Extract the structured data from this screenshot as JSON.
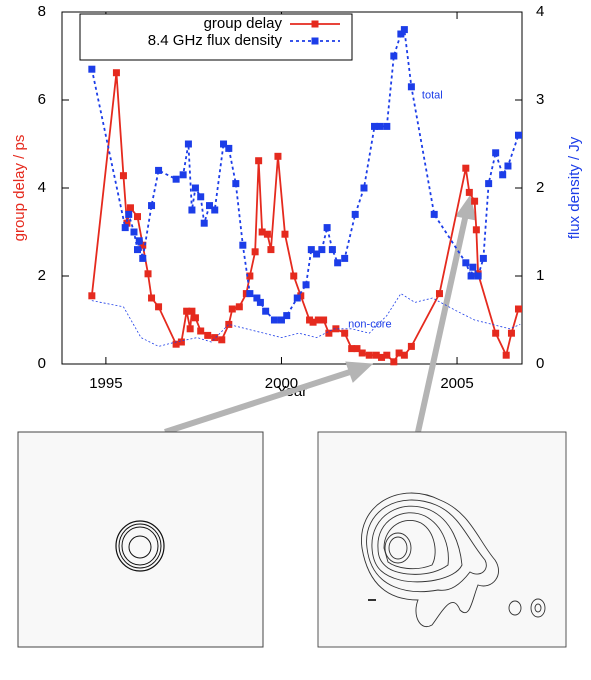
{
  "chart_data": {
    "type": "line",
    "xlabel": "Year",
    "ylabel": "group delay / ps",
    "y2label": "flux density / Jy",
    "xlim": [
      1993.75,
      2006.85
    ],
    "xticks": [
      1995,
      2000,
      2005
    ],
    "ylim": [
      0,
      8
    ],
    "yticks": [
      0,
      2,
      4,
      6,
      8
    ],
    "y2lim": [
      0,
      4
    ],
    "y2ticks": [
      0,
      1,
      2,
      3,
      4
    ],
    "legend": "upper left",
    "annotations": [
      {
        "text": "total",
        "x": 2004.0,
        "y": 3.05,
        "axis": "y2"
      },
      {
        "text": "non-core",
        "x": 2001.9,
        "y": 0.45,
        "axis": "y2"
      }
    ],
    "series": [
      {
        "name": "group delay",
        "color": "#e52a1e",
        "style": "solid",
        "marker": true,
        "x": [
          1994.6,
          1995.3,
          1995.5,
          1995.6,
          1995.7,
          1995.9,
          1996.05,
          1996.2,
          1996.3,
          1996.5,
          1997.0,
          1997.15,
          1997.3,
          1997.4,
          1997.45,
          1997.55,
          1997.7,
          1997.9,
          1998.1,
          1998.3,
          1998.5,
          1998.6,
          1998.8,
          1999.0,
          1999.1,
          1999.25,
          1999.35,
          1999.45,
          1999.6,
          1999.7,
          1999.9,
          2000.1,
          2000.35,
          2000.55,
          2000.8,
          2000.9,
          2001.05,
          2001.2,
          2001.35,
          2001.55,
          2001.8,
          2002.0,
          2002.15,
          2002.3,
          2002.5,
          2002.7,
          2002.85,
          2003.0,
          2003.2,
          2003.35,
          2003.5,
          2003.7,
          2004.5,
          2005.25,
          2005.35,
          2005.5,
          2005.55,
          2005.6,
          2006.1,
          2006.4,
          2006.55,
          2006.75
        ],
        "values": [
          1.55,
          6.62,
          4.28,
          3.2,
          3.55,
          3.35,
          2.7,
          2.05,
          1.5,
          1.3,
          0.45,
          0.5,
          1.2,
          0.8,
          1.2,
          1.05,
          0.75,
          0.65,
          0.6,
          0.55,
          0.9,
          1.25,
          1.3,
          1.6,
          2.0,
          2.55,
          4.62,
          3.0,
          2.95,
          2.6,
          4.72,
          2.95,
          2.0,
          1.55,
          1.0,
          0.95,
          1.0,
          1.0,
          0.7,
          0.8,
          0.7,
          0.35,
          0.35,
          0.25,
          0.2,
          0.2,
          0.15,
          0.2,
          0.05,
          0.25,
          0.2,
          0.4,
          1.6,
          4.45,
          3.9,
          3.7,
          3.05,
          2.05,
          0.7,
          0.2,
          0.7,
          1.25
        ]
      },
      {
        "name": "8.4 GHz flux density",
        "color": "#1c3de8",
        "style": "dotted",
        "marker": true,
        "axis": "y2",
        "x": [
          1994.6,
          1995.55,
          1995.65,
          1995.8,
          1995.9,
          1995.95,
          1996.05,
          1996.3,
          1996.5,
          1997.0,
          1997.2,
          1997.35,
          1997.45,
          1997.55,
          1997.7,
          1997.8,
          1997.95,
          1998.1,
          1998.35,
          1998.5,
          1998.7,
          1998.9,
          1999.1,
          1999.3,
          1999.4,
          1999.55,
          1999.8,
          2000.0,
          2000.15,
          2000.45,
          2000.7,
          2000.85,
          2001.0,
          2001.15,
          2001.3,
          2001.45,
          2001.6,
          2001.8,
          2002.1,
          2002.35,
          2002.65,
          2002.8,
          2003.0,
          2003.2,
          2003.4,
          2003.5,
          2003.7,
          2004.35,
          2005.25,
          2005.4,
          2005.45,
          2005.6,
          2005.75,
          2005.9,
          2006.1,
          2006.3,
          2006.45,
          2006.75
        ],
        "values": [
          3.35,
          1.55,
          1.7,
          1.5,
          1.3,
          1.4,
          1.2,
          1.8,
          2.2,
          2.1,
          2.15,
          2.5,
          1.75,
          2.0,
          1.9,
          1.6,
          1.8,
          1.75,
          2.5,
          2.45,
          2.05,
          1.35,
          0.8,
          0.75,
          0.7,
          0.6,
          0.5,
          0.5,
          0.55,
          0.75,
          0.9,
          1.3,
          1.25,
          1.3,
          1.55,
          1.3,
          1.15,
          1.2,
          1.7,
          2.0,
          2.7,
          2.7,
          2.7,
          3.5,
          3.75,
          3.8,
          3.15,
          1.7,
          1.15,
          1.0,
          1.1,
          1.0,
          1.2,
          2.05,
          2.4,
          2.15,
          2.25,
          2.6
        ]
      },
      {
        "color": "#1c3de8",
        "style": "thin-dotted",
        "marker": false,
        "axis": "y2",
        "x": [
          1994.6,
          1995.5,
          1996.0,
          1996.5,
          1997.0,
          1997.6,
          1998.0,
          1998.5,
          1999.0,
          1999.5,
          2000.0,
          2000.5,
          2001.0,
          2001.5,
          2002.0,
          2002.5,
          2003.0,
          2003.4,
          2003.8,
          2004.3,
          2005.0,
          2005.5,
          2006.0,
          2006.5,
          2006.8
        ],
        "values": [
          0.72,
          0.65,
          0.3,
          0.2,
          0.25,
          0.3,
          0.25,
          0.45,
          0.4,
          0.35,
          0.3,
          0.35,
          0.3,
          0.4,
          0.4,
          0.35,
          0.55,
          0.8,
          0.7,
          0.75,
          0.6,
          0.5,
          0.45,
          0.4,
          0.45
        ]
      }
    ]
  }
}
